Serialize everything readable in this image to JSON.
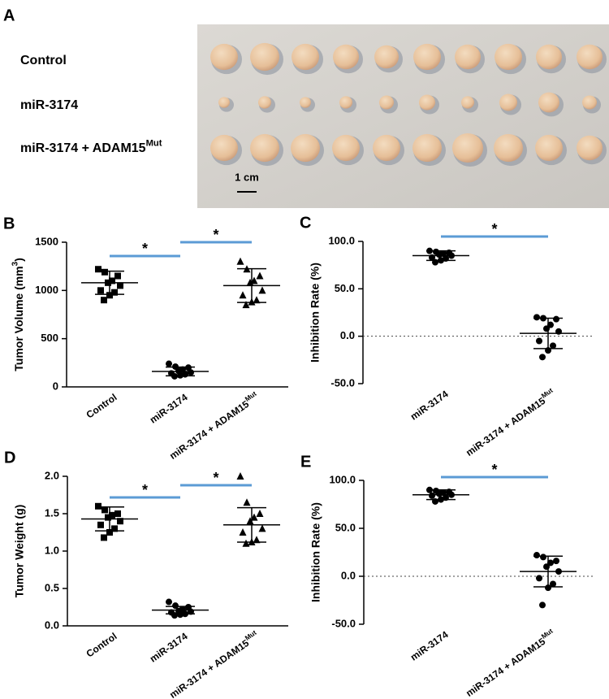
{
  "panel_a": {
    "panel_label": "A",
    "row_labels": [
      "Control",
      "miR-3174",
      {
        "label": "miR-3174 + ADAM15",
        "superscript": "Mut"
      }
    ],
    "scale_bar": "1 cm"
  },
  "chart_data": [
    {
      "type": "scatter",
      "panel_label": "B",
      "y_label": {
        "label": "Tumor Volume (mm",
        "superscript": "3",
        "suffix": ")"
      },
      "categories": [
        "Control",
        "miR-3174",
        {
          "label": "miR-3174 + ADAM15",
          "superscript": "Mut"
        }
      ],
      "markers": [
        "square",
        "circle",
        "triangle"
      ],
      "color": "#000000",
      "values": [
        [
          1220,
          1190,
          1150,
          1100,
          1080,
          1050,
          1000,
          980,
          950,
          900
        ],
        [
          240,
          210,
          200,
          180,
          165,
          150,
          140,
          130,
          120,
          110
        ],
        [
          1300,
          1220,
          1150,
          1100,
          1080,
          1000,
          950,
          900,
          880,
          850
        ]
      ],
      "means": [
        1080,
        160,
        1050
      ],
      "sd": [
        120,
        45,
        175
      ],
      "ylim": [
        0,
        1500
      ],
      "yticks": [
        0,
        500,
        1000,
        1500
      ],
      "significance": [
        {
          "groups": [
            0,
            1
          ],
          "label": "*",
          "color": "#5b9bd5"
        },
        {
          "groups": [
            1,
            2
          ],
          "label": "*",
          "color": "#5b9bd5"
        }
      ]
    },
    {
      "type": "scatter",
      "panel_label": "C",
      "y_label": "Inhibition Rate (%)",
      "categories": [
        "miR-3174",
        {
          "label": "miR-3174 + ADAM15",
          "superscript": "Mut"
        }
      ],
      "markers": [
        "circle",
        "circle"
      ],
      "color": "#000000",
      "values": [
        [
          90,
          89,
          88,
          87,
          86,
          85,
          83,
          82,
          80,
          78
        ],
        [
          20,
          19,
          18,
          12,
          8,
          5,
          -5,
          -10,
          -15,
          -22
        ]
      ],
      "means": [
        85,
        3
      ],
      "sd": [
        5,
        16
      ],
      "ylim": [
        -50,
        100
      ],
      "yticks": [
        {
          "value": -50,
          "label": "-50.0"
        },
        {
          "value": 0,
          "label": "0.0"
        },
        {
          "value": 50,
          "label": "50.0"
        },
        {
          "value": 100,
          "label": "100.0"
        }
      ],
      "zero_line": true,
      "significance": [
        {
          "groups": [
            0,
            1
          ],
          "label": "*",
          "color": "#5b9bd5"
        }
      ]
    },
    {
      "type": "scatter",
      "panel_label": "D",
      "y_label": "Tumor Weight (g)",
      "categories": [
        "Control",
        "miR-3174",
        {
          "label": "miR-3174 + ADAM15",
          "superscript": "Mut"
        }
      ],
      "markers": [
        "square",
        "circle",
        "triangle"
      ],
      "color": "#000000",
      "values": [
        [
          1.6,
          1.55,
          1.5,
          1.48,
          1.45,
          1.4,
          1.35,
          1.3,
          1.25,
          1.18
        ],
        [
          0.32,
          0.27,
          0.25,
          0.22,
          0.2,
          0.19,
          0.18,
          0.16,
          0.15,
          0.14
        ],
        [
          2.0,
          1.65,
          1.5,
          1.45,
          1.4,
          1.3,
          1.25,
          1.15,
          1.12,
          1.1
        ]
      ],
      "means": [
        1.43,
        0.21,
        1.35
      ],
      "sd": [
        0.16,
        0.05,
        0.23
      ],
      "ylim": [
        0,
        2
      ],
      "yticks": [
        {
          "value": 0,
          "label": "0.0"
        },
        {
          "value": 0.5,
          "label": "0.5"
        },
        {
          "value": 1,
          "label": "1.0"
        },
        {
          "value": 1.5,
          "label": "1.5"
        },
        {
          "value": 2,
          "label": "2.0"
        }
      ],
      "significance": [
        {
          "groups": [
            0,
            1
          ],
          "label": "*",
          "color": "#5b9bd5"
        },
        {
          "groups": [
            1,
            2
          ],
          "label": "*",
          "color": "#5b9bd5"
        }
      ]
    },
    {
      "type": "scatter",
      "panel_label": "E",
      "y_label": "Inhibition Rate (%)",
      "categories": [
        "miR-3174",
        {
          "label": "miR-3174 + ADAM15",
          "superscript": "Mut"
        }
      ],
      "markers": [
        "circle",
        "circle"
      ],
      "color": "#000000",
      "values": [
        [
          90,
          89,
          88,
          87,
          86,
          85,
          84,
          82,
          80,
          78
        ],
        [
          22,
          20,
          16,
          14,
          10,
          5,
          -2,
          -8,
          -12,
          -30
        ]
      ],
      "means": [
        85,
        5
      ],
      "sd": [
        5,
        16
      ],
      "ylim": [
        -50,
        100
      ],
      "yticks": [
        {
          "value": -50,
          "label": "-50.0"
        },
        {
          "value": 0,
          "label": "0.0"
        },
        {
          "value": 50,
          "label": "50.0"
        },
        {
          "value": 100,
          "label": "100.0"
        }
      ],
      "zero_line": true,
      "significance": [
        {
          "groups": [
            0,
            1
          ],
          "label": "*",
          "color": "#5b9bd5"
        }
      ]
    }
  ]
}
